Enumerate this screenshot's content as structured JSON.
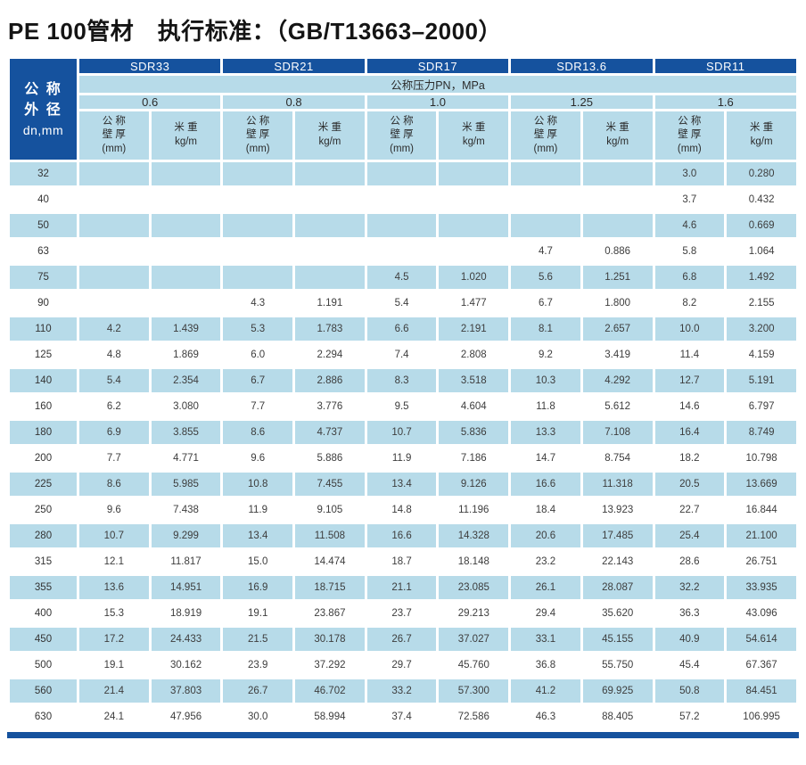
{
  "title": "PE 100管材　执行标准：（GB/T13663–2000）",
  "colors": {
    "header_blue": "#15529e",
    "row_blue": "#b7dbe9"
  },
  "table": {
    "corner": {
      "lines": [
        "公 称",
        "外 径"
      ],
      "unit": "dn,mm"
    },
    "sdr_groups": [
      "SDR33",
      "SDR21",
      "SDR17",
      "SDR13.6",
      "SDR11"
    ],
    "pressure_label": "公称压力PN，MPa",
    "pressures": [
      "0.6",
      "0.8",
      "1.0",
      "1.25",
      "1.6"
    ],
    "col_wall": {
      "lines": [
        "公 称",
        "壁 厚",
        "(mm)"
      ]
    },
    "col_weight": {
      "lines": [
        "米 重",
        "kg/m"
      ]
    },
    "rows": [
      {
        "dn": "32",
        "cells": [
          "",
          "",
          "",
          "",
          "",
          "",
          "",
          "",
          "3.0",
          "0.280"
        ]
      },
      {
        "dn": "40",
        "cells": [
          "",
          "",
          "",
          "",
          "",
          "",
          "",
          "",
          "3.7",
          "0.432"
        ]
      },
      {
        "dn": "50",
        "cells": [
          "",
          "",
          "",
          "",
          "",
          "",
          "",
          "",
          "4.6",
          "0.669"
        ]
      },
      {
        "dn": "63",
        "cells": [
          "",
          "",
          "",
          "",
          "",
          "",
          "4.7",
          "0.886",
          "5.8",
          "1.064"
        ]
      },
      {
        "dn": "75",
        "cells": [
          "",
          "",
          "",
          "",
          "4.5",
          "1.020",
          "5.6",
          "1.251",
          "6.8",
          "1.492"
        ]
      },
      {
        "dn": "90",
        "cells": [
          "",
          "",
          "4.3",
          "1.191",
          "5.4",
          "1.477",
          "6.7",
          "1.800",
          "8.2",
          "2.155"
        ]
      },
      {
        "dn": "110",
        "cells": [
          "4.2",
          "1.439",
          "5.3",
          "1.783",
          "6.6",
          "2.191",
          "8.1",
          "2.657",
          "10.0",
          "3.200"
        ]
      },
      {
        "dn": "125",
        "cells": [
          "4.8",
          "1.869",
          "6.0",
          "2.294",
          "7.4",
          "2.808",
          "9.2",
          "3.419",
          "11.4",
          "4.159"
        ]
      },
      {
        "dn": "140",
        "cells": [
          "5.4",
          "2.354",
          "6.7",
          "2.886",
          "8.3",
          "3.518",
          "10.3",
          "4.292",
          "12.7",
          "5.191"
        ]
      },
      {
        "dn": "160",
        "cells": [
          "6.2",
          "3.080",
          "7.7",
          "3.776",
          "9.5",
          "4.604",
          "11.8",
          "5.612",
          "14.6",
          "6.797"
        ]
      },
      {
        "dn": "180",
        "cells": [
          "6.9",
          "3.855",
          "8.6",
          "4.737",
          "10.7",
          "5.836",
          "13.3",
          "7.108",
          "16.4",
          "8.749"
        ]
      },
      {
        "dn": "200",
        "cells": [
          "7.7",
          "4.771",
          "9.6",
          "5.886",
          "11.9",
          "7.186",
          "14.7",
          "8.754",
          "18.2",
          "10.798"
        ]
      },
      {
        "dn": "225",
        "cells": [
          "8.6",
          "5.985",
          "10.8",
          "7.455",
          "13.4",
          "9.126",
          "16.6",
          "11.318",
          "20.5",
          "13.669"
        ]
      },
      {
        "dn": "250",
        "cells": [
          "9.6",
          "7.438",
          "11.9",
          "9.105",
          "14.8",
          "11.196",
          "18.4",
          "13.923",
          "22.7",
          "16.844"
        ]
      },
      {
        "dn": "280",
        "cells": [
          "10.7",
          "9.299",
          "13.4",
          "11.508",
          "16.6",
          "14.328",
          "20.6",
          "17.485",
          "25.4",
          "21.100"
        ]
      },
      {
        "dn": "315",
        "cells": [
          "12.1",
          "11.817",
          "15.0",
          "14.474",
          "18.7",
          "18.148",
          "23.2",
          "22.143",
          "28.6",
          "26.751"
        ]
      },
      {
        "dn": "355",
        "cells": [
          "13.6",
          "14.951",
          "16.9",
          "18.715",
          "21.1",
          "23.085",
          "26.1",
          "28.087",
          "32.2",
          "33.935"
        ]
      },
      {
        "dn": "400",
        "cells": [
          "15.3",
          "18.919",
          "19.1",
          "23.867",
          "23.7",
          "29.213",
          "29.4",
          "35.620",
          "36.3",
          "43.096"
        ]
      },
      {
        "dn": "450",
        "cells": [
          "17.2",
          "24.433",
          "21.5",
          "30.178",
          "26.7",
          "37.027",
          "33.1",
          "45.155",
          "40.9",
          "54.614"
        ]
      },
      {
        "dn": "500",
        "cells": [
          "19.1",
          "30.162",
          "23.9",
          "37.292",
          "29.7",
          "45.760",
          "36.8",
          "55.750",
          "45.4",
          "67.367"
        ]
      },
      {
        "dn": "560",
        "cells": [
          "21.4",
          "37.803",
          "26.7",
          "46.702",
          "33.2",
          "57.300",
          "41.2",
          "69.925",
          "50.8",
          "84.451"
        ]
      },
      {
        "dn": "630",
        "cells": [
          "24.1",
          "47.956",
          "30.0",
          "58.994",
          "37.4",
          "72.586",
          "46.3",
          "88.405",
          "57.2",
          "106.995"
        ]
      }
    ]
  }
}
